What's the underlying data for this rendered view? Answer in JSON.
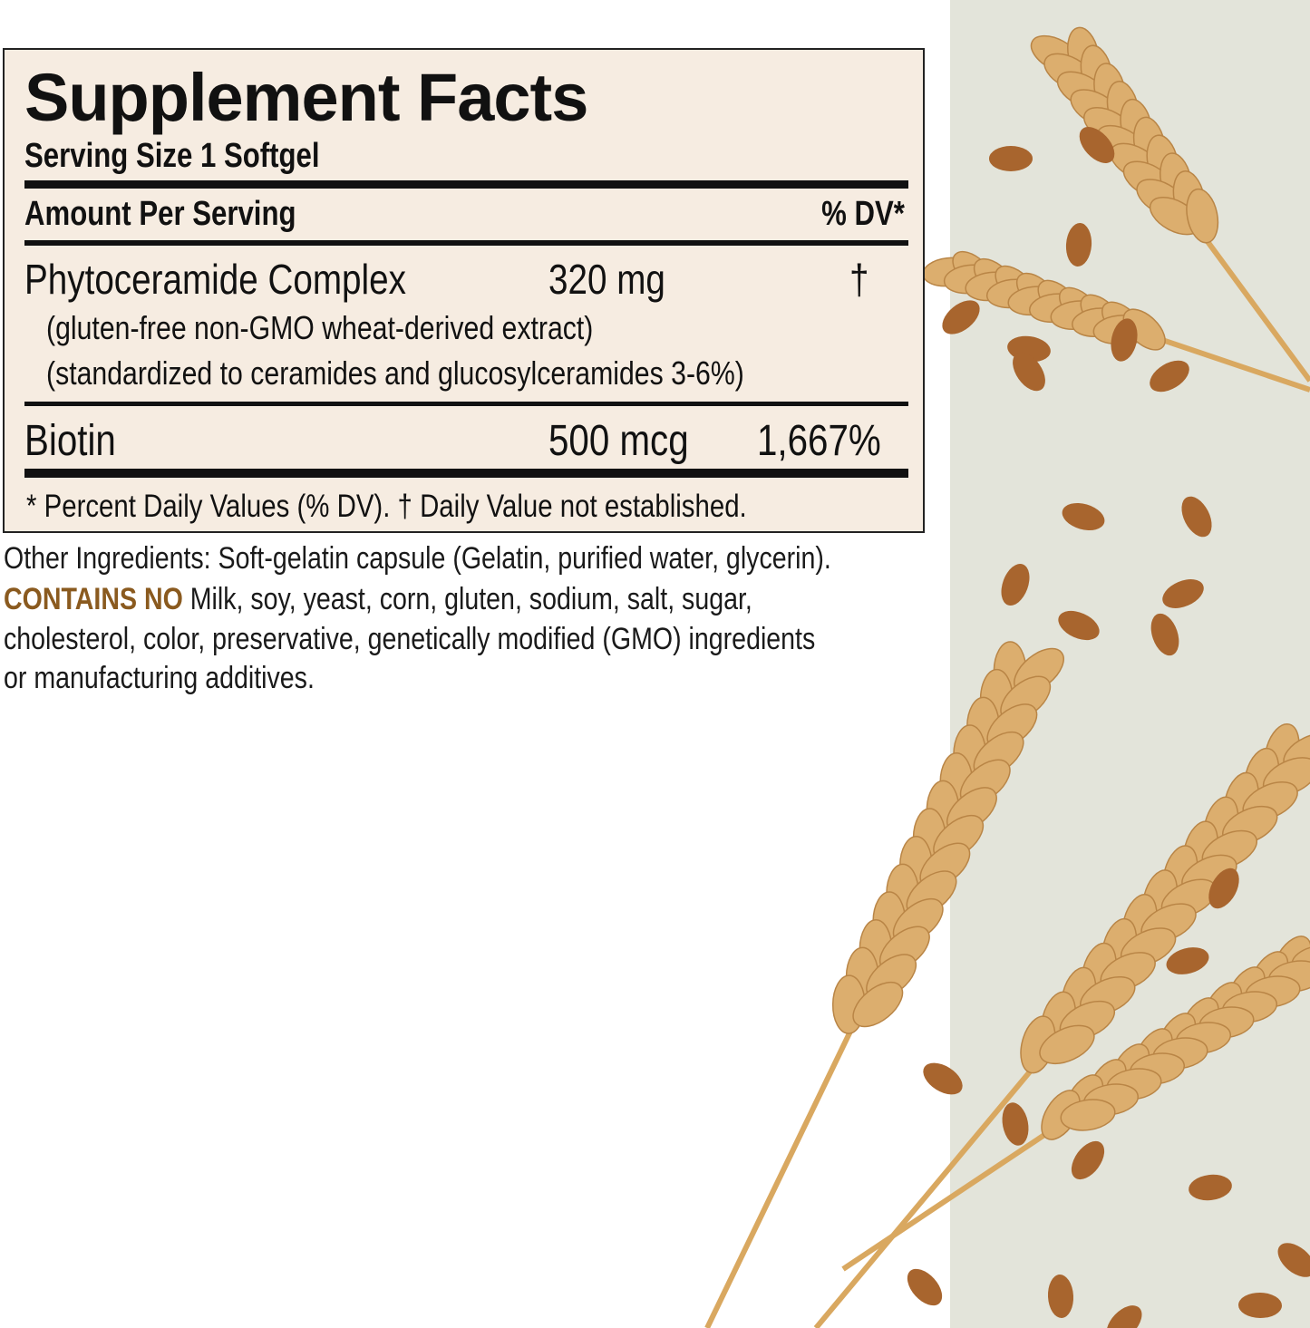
{
  "label": {
    "title": "Supplement Facts",
    "serving_size": "Serving Size 1 Softgel",
    "amount_per_serving": "Amount Per Serving",
    "dv_header": "% DV*",
    "rows": [
      {
        "name": "Phytoceramide Complex",
        "amount": "320 mg",
        "dv": "†",
        "notes": [
          "(gluten-free non-GMO wheat-derived extract)",
          "(standardized to ceramides and glucosylceramides 3-6%)"
        ]
      },
      {
        "name": "Biotin",
        "amount": "500 mcg",
        "dv": "1,667%"
      }
    ],
    "footnote": "* Percent Daily Values (% DV). † Daily Value not established."
  },
  "ingredients": {
    "other": "Other Ingredients: Soft-gelatin capsule (Gelatin, purified water, glycerin).",
    "contains_no_label": "CONTAINS NO",
    "contains_no_line1": " Milk, soy, yeast, corn, gluten, sodium, salt, sugar,",
    "line2": "cholesterol, color, preservative, genetically modified (GMO) ingredients",
    "line3": "or manufacturing additives."
  },
  "colors": {
    "label_bg": "#f6ece1",
    "accent": "#8a5a1f",
    "panel": "#e3e4da",
    "wheat": "#dcae6e",
    "grain": "#a8652e"
  }
}
